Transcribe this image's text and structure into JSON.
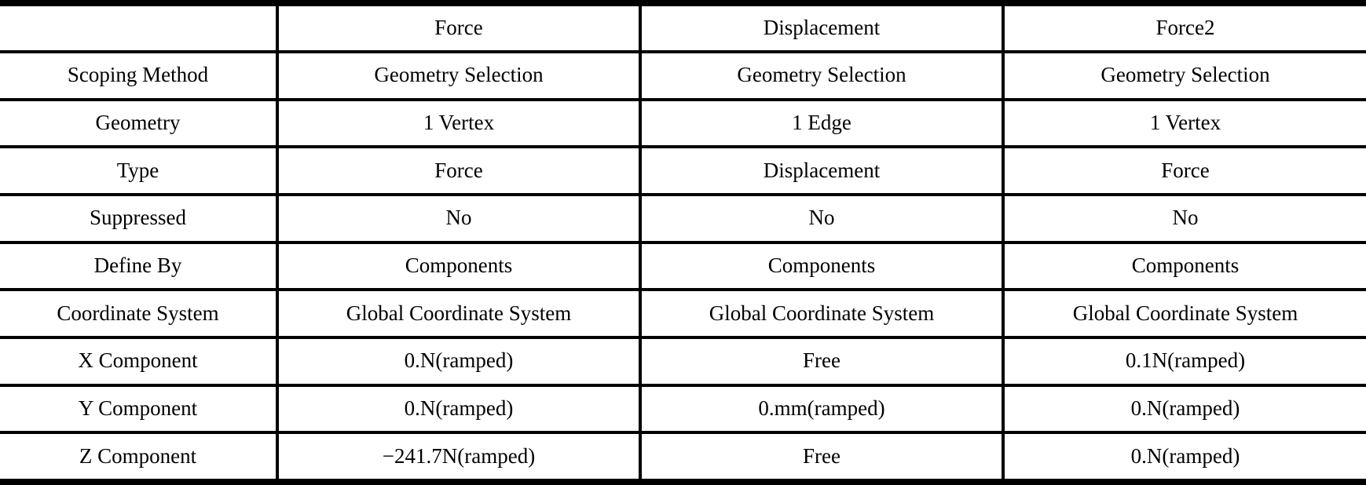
{
  "table": {
    "title": "boundary-conditions-details",
    "columns": [
      "",
      "Force",
      "Displacement",
      "Force2"
    ],
    "rows": [
      {
        "label": "Scoping Method",
        "values": [
          "Geometry Selection",
          "Geometry Selection",
          "Geometry Selection"
        ]
      },
      {
        "label": "Geometry",
        "values": [
          "1 Vertex",
          "1 Edge",
          "1 Vertex"
        ]
      },
      {
        "label": "Type",
        "values": [
          "Force",
          "Displacement",
          "Force"
        ]
      },
      {
        "label": "Suppressed",
        "values": [
          "No",
          "No",
          "No"
        ]
      },
      {
        "label": "Define By",
        "values": [
          "Components",
          "Components",
          "Components"
        ]
      },
      {
        "label": "Coordinate System",
        "values": [
          "Global Coordinate System",
          "Global Coordinate System",
          "Global Coordinate System"
        ]
      },
      {
        "label": "X Component",
        "values": [
          "0.N(ramped)",
          "Free",
          "0.1N(ramped)"
        ]
      },
      {
        "label": "Y Component",
        "values": [
          "0.N(ramped)",
          "0.mm(ramped)",
          "0.N(ramped)"
        ]
      },
      {
        "label": "Z Component",
        "values": [
          "−241.7N(ramped)",
          "Free",
          "0.N(ramped)"
        ]
      }
    ],
    "colors": {
      "border": "#000000",
      "background": "#ffffff",
      "text": "#000000"
    }
  }
}
